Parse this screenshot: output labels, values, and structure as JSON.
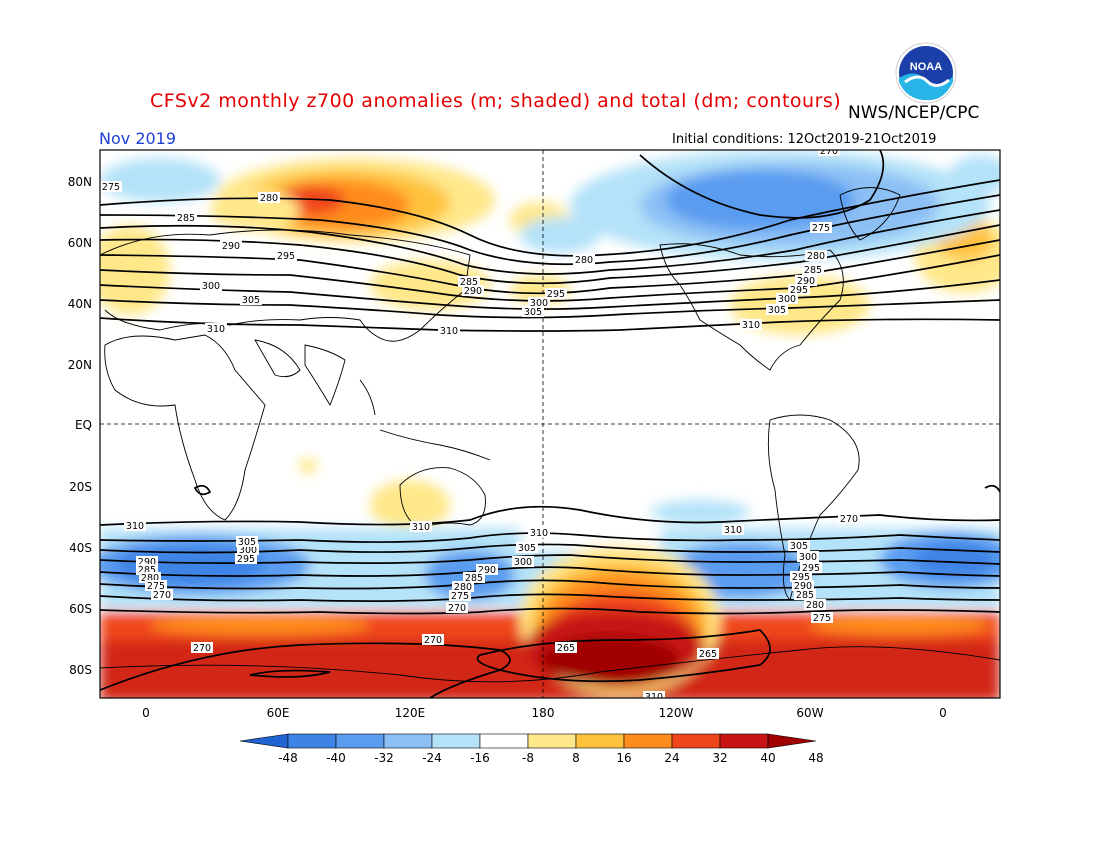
{
  "title": "CFSv2 monthly z700 anomalies (m; shaded) and total (dm; contours)",
  "agency": "NWS/NCEP/CPC",
  "month": "Nov 2019",
  "initial_conditions": "Initial conditions: 12Oct2019-21Oct2019",
  "logo": {
    "text": "NOAA",
    "icon": "noaa-logo"
  },
  "map": {
    "lat_labels": [
      "80N",
      "60N",
      "40N",
      "20N",
      "EQ",
      "20S",
      "40S",
      "60S",
      "80S"
    ],
    "lon_labels": [
      "0",
      "60E",
      "120E",
      "180",
      "120W",
      "60W",
      "0"
    ],
    "contour_labels": [
      "275",
      "280",
      "285",
      "290",
      "295",
      "300",
      "305",
      "310",
      "310",
      "280",
      "285",
      "290",
      "300",
      "305",
      "295",
      "310",
      "275",
      "280",
      "285",
      "290",
      "295",
      "300",
      "305",
      "310",
      "310",
      "310",
      "290",
      "285",
      "280",
      "275",
      "270",
      "295",
      "300",
      "305",
      "310",
      "290",
      "285",
      "280",
      "275",
      "270",
      "305",
      "300",
      "295",
      "265",
      "265",
      "270",
      "270",
      "305",
      "300",
      "295",
      "290",
      "285",
      "280",
      "275",
      "270",
      "310",
      "270"
    ]
  },
  "colorbar": {
    "labels": [
      "-48",
      "-40",
      "-32",
      "-24",
      "-16",
      "-8",
      "8",
      "16",
      "24",
      "32",
      "40",
      "48"
    ],
    "colors": [
      "#1f64d2",
      "#3e84e6",
      "#5a9cf0",
      "#8cc0f5",
      "#b4e2f8",
      "#ffffff",
      "#ffe88a",
      "#ffc23c",
      "#ff8c1e",
      "#f0461e",
      "#c81414",
      "#a00000"
    ]
  },
  "chart_data": {
    "type": "heatmap",
    "variable": "z700 anomalies (m; shaded) and total (dm; contours)",
    "period": "Nov 2019",
    "shading_levels": [
      -48,
      -40,
      -32,
      -24,
      -16,
      -8,
      8,
      16,
      24,
      32,
      40,
      48
    ],
    "contour_levels_dm": [
      265,
      270,
      275,
      280,
      285,
      290,
      295,
      300,
      305,
      310
    ]
  }
}
